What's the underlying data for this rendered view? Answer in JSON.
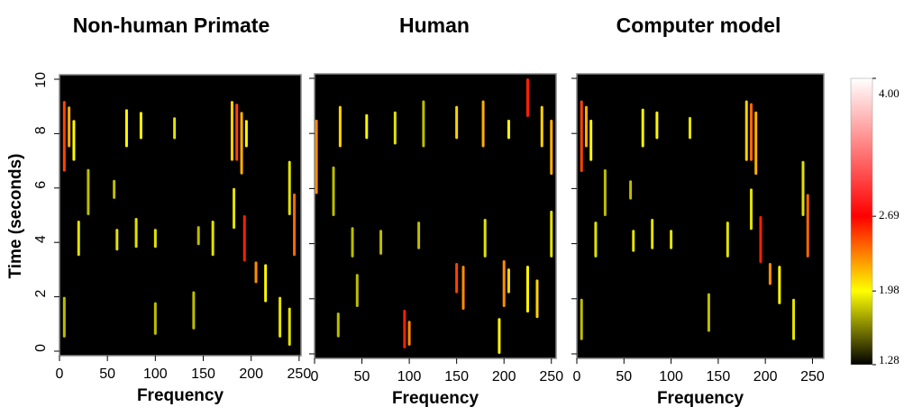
{
  "chart_data": [
    {
      "type": "heatmap",
      "title": "Non-human Primate",
      "xlabel": "Frequency",
      "ylabel": "Time (seconds)",
      "xlim": [
        0,
        252
      ],
      "ylim": [
        0,
        10
      ],
      "xticks": [
        0,
        50,
        100,
        150,
        200,
        250
      ],
      "yticks": [
        0,
        2,
        4,
        6,
        8,
        10
      ],
      "streaks": [
        {
          "x": 5,
          "y0": 6.6,
          "y1": 9.2,
          "z": 2.5
        },
        {
          "x": 10,
          "y0": 7.5,
          "y1": 9.0,
          "z": 2.2
        },
        {
          "x": 15,
          "y0": 7.0,
          "y1": 8.5,
          "z": 2.0
        },
        {
          "x": 70,
          "y0": 7.5,
          "y1": 8.9,
          "z": 2.0
        },
        {
          "x": 85,
          "y0": 7.8,
          "y1": 8.8,
          "z": 2.0
        },
        {
          "x": 120,
          "y0": 7.8,
          "y1": 8.6,
          "z": 1.9
        },
        {
          "x": 180,
          "y0": 7.0,
          "y1": 9.2,
          "z": 2.1
        },
        {
          "x": 185,
          "y0": 7.0,
          "y1": 9.1,
          "z": 2.5
        },
        {
          "x": 190,
          "y0": 6.5,
          "y1": 8.8,
          "z": 2.2
        },
        {
          "x": 195,
          "y0": 7.5,
          "y1": 8.5,
          "z": 2.0
        },
        {
          "x": 30,
          "y0": 5.0,
          "y1": 6.7,
          "z": 1.8
        },
        {
          "x": 57,
          "y0": 5.6,
          "y1": 6.3,
          "z": 1.8
        },
        {
          "x": 182,
          "y0": 4.5,
          "y1": 6.0,
          "z": 1.9
        },
        {
          "x": 193,
          "y0": 3.3,
          "y1": 5.0,
          "z": 2.6
        },
        {
          "x": 245,
          "y0": 3.5,
          "y1": 5.8,
          "z": 2.4
        },
        {
          "x": 240,
          "y0": 5.0,
          "y1": 7.0,
          "z": 1.9
        },
        {
          "x": 20,
          "y0": 3.5,
          "y1": 4.8,
          "z": 1.9
        },
        {
          "x": 60,
          "y0": 3.7,
          "y1": 4.5,
          "z": 1.9
        },
        {
          "x": 80,
          "y0": 3.8,
          "y1": 4.9,
          "z": 1.9
        },
        {
          "x": 100,
          "y0": 3.8,
          "y1": 4.5,
          "z": 1.9
        },
        {
          "x": 145,
          "y0": 3.9,
          "y1": 4.6,
          "z": 1.8
        },
        {
          "x": 160,
          "y0": 3.5,
          "y1": 4.8,
          "z": 1.9
        },
        {
          "x": 215,
          "y0": 1.8,
          "y1": 3.2,
          "z": 2.0
        },
        {
          "x": 230,
          "y0": 0.5,
          "y1": 2.0,
          "z": 1.9
        },
        {
          "x": 240,
          "y0": 0.2,
          "y1": 1.6,
          "z": 1.9
        },
        {
          "x": 5,
          "y0": 0.5,
          "y1": 2.0,
          "z": 1.8
        },
        {
          "x": 100,
          "y0": 0.6,
          "y1": 1.8,
          "z": 1.8
        },
        {
          "x": 140,
          "y0": 0.8,
          "y1": 2.2,
          "z": 1.8
        },
        {
          "x": 205,
          "y0": 2.5,
          "y1": 3.3,
          "z": 2.3
        }
      ]
    },
    {
      "type": "heatmap",
      "title": "Human",
      "xlabel": "Frequency",
      "xlim": [
        0,
        255
      ],
      "ylim": [
        0,
        10
      ],
      "xticks": [
        0,
        50,
        100,
        150,
        200,
        250
      ],
      "yticks": [
        0,
        2,
        4,
        6,
        8,
        10
      ],
      "streaks": [
        {
          "x": 2,
          "y0": 5.8,
          "y1": 8.5,
          "z": 2.3
        },
        {
          "x": 27,
          "y0": 7.5,
          "y1": 9.0,
          "z": 2.1
        },
        {
          "x": 55,
          "y0": 7.8,
          "y1": 8.7,
          "z": 2.0
        },
        {
          "x": 85,
          "y0": 7.6,
          "y1": 8.8,
          "z": 1.9
        },
        {
          "x": 115,
          "y0": 7.5,
          "y1": 9.2,
          "z": 1.8
        },
        {
          "x": 150,
          "y0": 7.8,
          "y1": 9.0,
          "z": 2.1
        },
        {
          "x": 178,
          "y0": 7.5,
          "y1": 9.2,
          "z": 2.2
        },
        {
          "x": 205,
          "y0": 7.8,
          "y1": 8.5,
          "z": 2.0
        },
        {
          "x": 225,
          "y0": 8.6,
          "y1": 10.0,
          "z": 2.6
        },
        {
          "x": 240,
          "y0": 7.5,
          "y1": 9.0,
          "z": 2.1
        },
        {
          "x": 250,
          "y0": 6.5,
          "y1": 8.5,
          "z": 2.2
        },
        {
          "x": 20,
          "y0": 5.0,
          "y1": 6.8,
          "z": 1.8
        },
        {
          "x": 150,
          "y0": 2.2,
          "y1": 3.3,
          "z": 2.5
        },
        {
          "x": 157,
          "y0": 1.6,
          "y1": 3.2,
          "z": 2.3
        },
        {
          "x": 200,
          "y0": 1.7,
          "y1": 3.4,
          "z": 2.3
        },
        {
          "x": 205,
          "y0": 2.2,
          "y1": 3.1,
          "z": 2.1
        },
        {
          "x": 225,
          "y0": 1.5,
          "y1": 3.2,
          "z": 2.0
        },
        {
          "x": 235,
          "y0": 1.3,
          "y1": 2.7,
          "z": 2.1
        },
        {
          "x": 95,
          "y0": 0.2,
          "y1": 1.6,
          "z": 2.6
        },
        {
          "x": 100,
          "y0": 0.3,
          "y1": 1.2,
          "z": 2.3
        },
        {
          "x": 195,
          "y0": 0.0,
          "y1": 1.3,
          "z": 2.0
        },
        {
          "x": 40,
          "y0": 3.5,
          "y1": 4.6,
          "z": 1.8
        },
        {
          "x": 70,
          "y0": 3.6,
          "y1": 4.5,
          "z": 1.8
        },
        {
          "x": 110,
          "y0": 3.8,
          "y1": 4.8,
          "z": 1.8
        },
        {
          "x": 180,
          "y0": 3.5,
          "y1": 4.9,
          "z": 1.9
        },
        {
          "x": 45,
          "y0": 1.7,
          "y1": 2.9,
          "z": 1.8
        },
        {
          "x": 25,
          "y0": 0.6,
          "y1": 1.5,
          "z": 1.8
        },
        {
          "x": 250,
          "y0": 3.5,
          "y1": 5.2,
          "z": 1.9
        }
      ]
    },
    {
      "type": "heatmap",
      "title": "Computer model",
      "xlabel": "Frequency",
      "xlim": [
        0,
        262
      ],
      "ylim": [
        0,
        10
      ],
      "xticks": [
        0,
        50,
        100,
        150,
        200,
        250
      ],
      "yticks": [
        0,
        2,
        4,
        6,
        8,
        10
      ],
      "streaks": [
        {
          "x": 5,
          "y0": 6.6,
          "y1": 9.2,
          "z": 2.5
        },
        {
          "x": 10,
          "y0": 7.5,
          "y1": 9.0,
          "z": 2.2
        },
        {
          "x": 15,
          "y0": 7.0,
          "y1": 8.5,
          "z": 2.0
        },
        {
          "x": 70,
          "y0": 7.5,
          "y1": 8.9,
          "z": 2.0
        },
        {
          "x": 85,
          "y0": 7.8,
          "y1": 8.8,
          "z": 2.0
        },
        {
          "x": 120,
          "y0": 7.8,
          "y1": 8.6,
          "z": 1.9
        },
        {
          "x": 180,
          "y0": 7.0,
          "y1": 9.2,
          "z": 2.1
        },
        {
          "x": 185,
          "y0": 7.0,
          "y1": 9.1,
          "z": 2.4
        },
        {
          "x": 190,
          "y0": 6.5,
          "y1": 8.8,
          "z": 2.2
        },
        {
          "x": 30,
          "y0": 5.0,
          "y1": 6.7,
          "z": 1.8
        },
        {
          "x": 57,
          "y0": 5.6,
          "y1": 6.3,
          "z": 1.8
        },
        {
          "x": 185,
          "y0": 4.5,
          "y1": 6.0,
          "z": 1.9
        },
        {
          "x": 195,
          "y0": 3.3,
          "y1": 5.0,
          "z": 2.6
        },
        {
          "x": 245,
          "y0": 3.5,
          "y1": 5.8,
          "z": 2.4
        },
        {
          "x": 240,
          "y0": 5.0,
          "y1": 7.0,
          "z": 1.9
        },
        {
          "x": 20,
          "y0": 3.5,
          "y1": 4.8,
          "z": 1.9
        },
        {
          "x": 60,
          "y0": 3.7,
          "y1": 4.5,
          "z": 1.9
        },
        {
          "x": 80,
          "y0": 3.8,
          "y1": 4.9,
          "z": 1.9
        },
        {
          "x": 100,
          "y0": 3.8,
          "y1": 4.5,
          "z": 1.9
        },
        {
          "x": 160,
          "y0": 3.5,
          "y1": 4.8,
          "z": 1.9
        },
        {
          "x": 215,
          "y0": 1.8,
          "y1": 3.2,
          "z": 2.0
        },
        {
          "x": 230,
          "y0": 0.5,
          "y1": 2.0,
          "z": 1.9
        },
        {
          "x": 5,
          "y0": 0.5,
          "y1": 2.0,
          "z": 1.8
        },
        {
          "x": 140,
          "y0": 0.8,
          "y1": 2.2,
          "z": 1.8
        },
        {
          "x": 205,
          "y0": 2.5,
          "y1": 3.3,
          "z": 2.3
        }
      ]
    }
  ],
  "colorbar": {
    "lim": [
      1.28,
      4
    ],
    "ticks": [
      {
        "value": 4,
        "label": "4.00"
      },
      2.69,
      1.98,
      1.28
    ],
    "colors": [
      "#ffffff",
      "#ff0000",
      "#ffff00",
      "#000000"
    ]
  }
}
